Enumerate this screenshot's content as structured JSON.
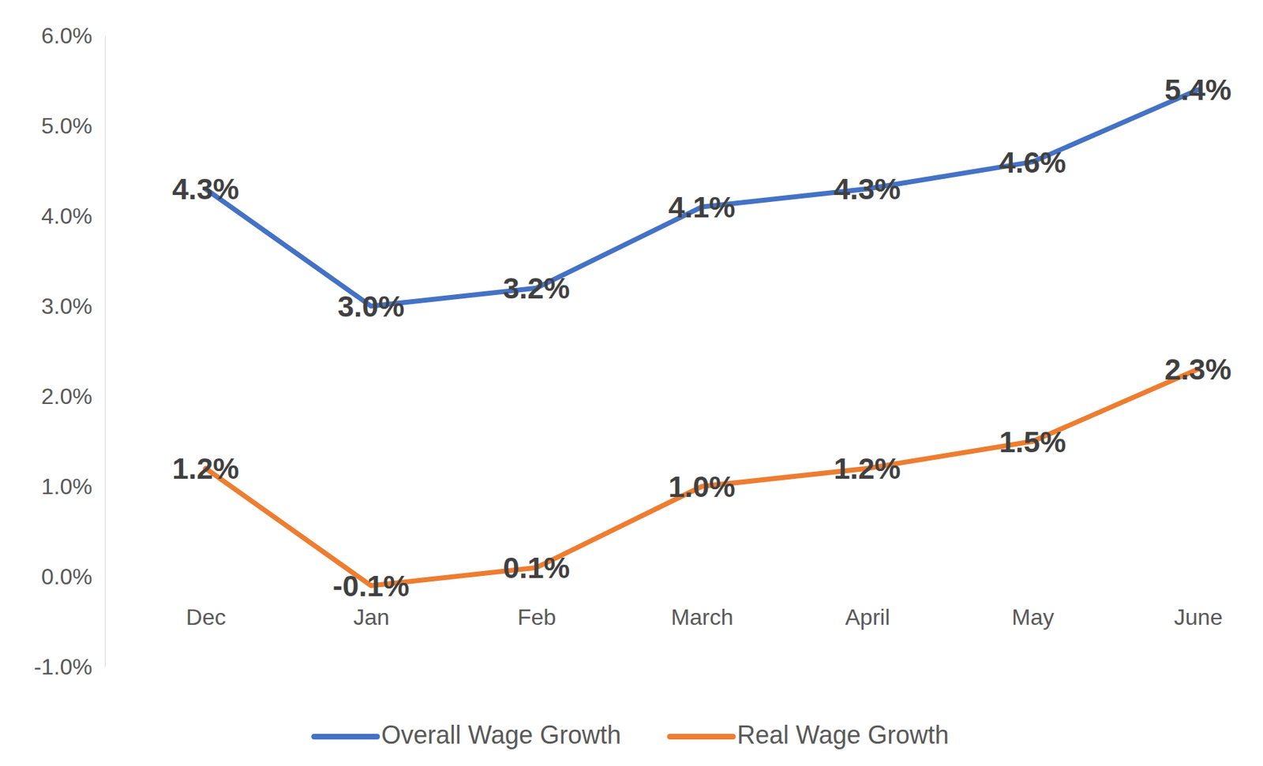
{
  "chart_data": {
    "type": "line",
    "categories": [
      "Dec",
      "Jan",
      "Feb",
      "March",
      "April",
      "May",
      "June"
    ],
    "series": [
      {
        "name": "Overall Wage Growth",
        "color": "#4472c4",
        "values": [
          4.3,
          3.0,
          3.2,
          4.1,
          4.3,
          4.6,
          5.4
        ],
        "value_labels": [
          "4.3%",
          "3.0%",
          "3.2%",
          "4.1%",
          "4.3%",
          "4.6%",
          "5.4%"
        ]
      },
      {
        "name": "Real Wage Growth",
        "color": "#ed7d31",
        "values": [
          1.2,
          -0.1,
          0.1,
          1.0,
          1.2,
          1.5,
          2.3
        ],
        "value_labels": [
          "1.2%",
          "-0.1%",
          "0.1%",
          "1.0%",
          "1.2%",
          "1.5%",
          "2.3%"
        ]
      }
    ],
    "ylim": [
      -1,
      6
    ],
    "yticks": [
      {
        "value": -1,
        "label": "-1.0%"
      },
      {
        "value": 0,
        "label": "0.0%"
      },
      {
        "value": 1,
        "label": "1.0%"
      },
      {
        "value": 2,
        "label": "2.0%"
      },
      {
        "value": 3,
        "label": "3.0%"
      },
      {
        "value": 4,
        "label": "4.0%"
      },
      {
        "value": 5,
        "label": "5.0%"
      },
      {
        "value": 6,
        "label": "6.0%"
      }
    ],
    "grid": false,
    "legend": "bottom",
    "data_labels": true
  }
}
